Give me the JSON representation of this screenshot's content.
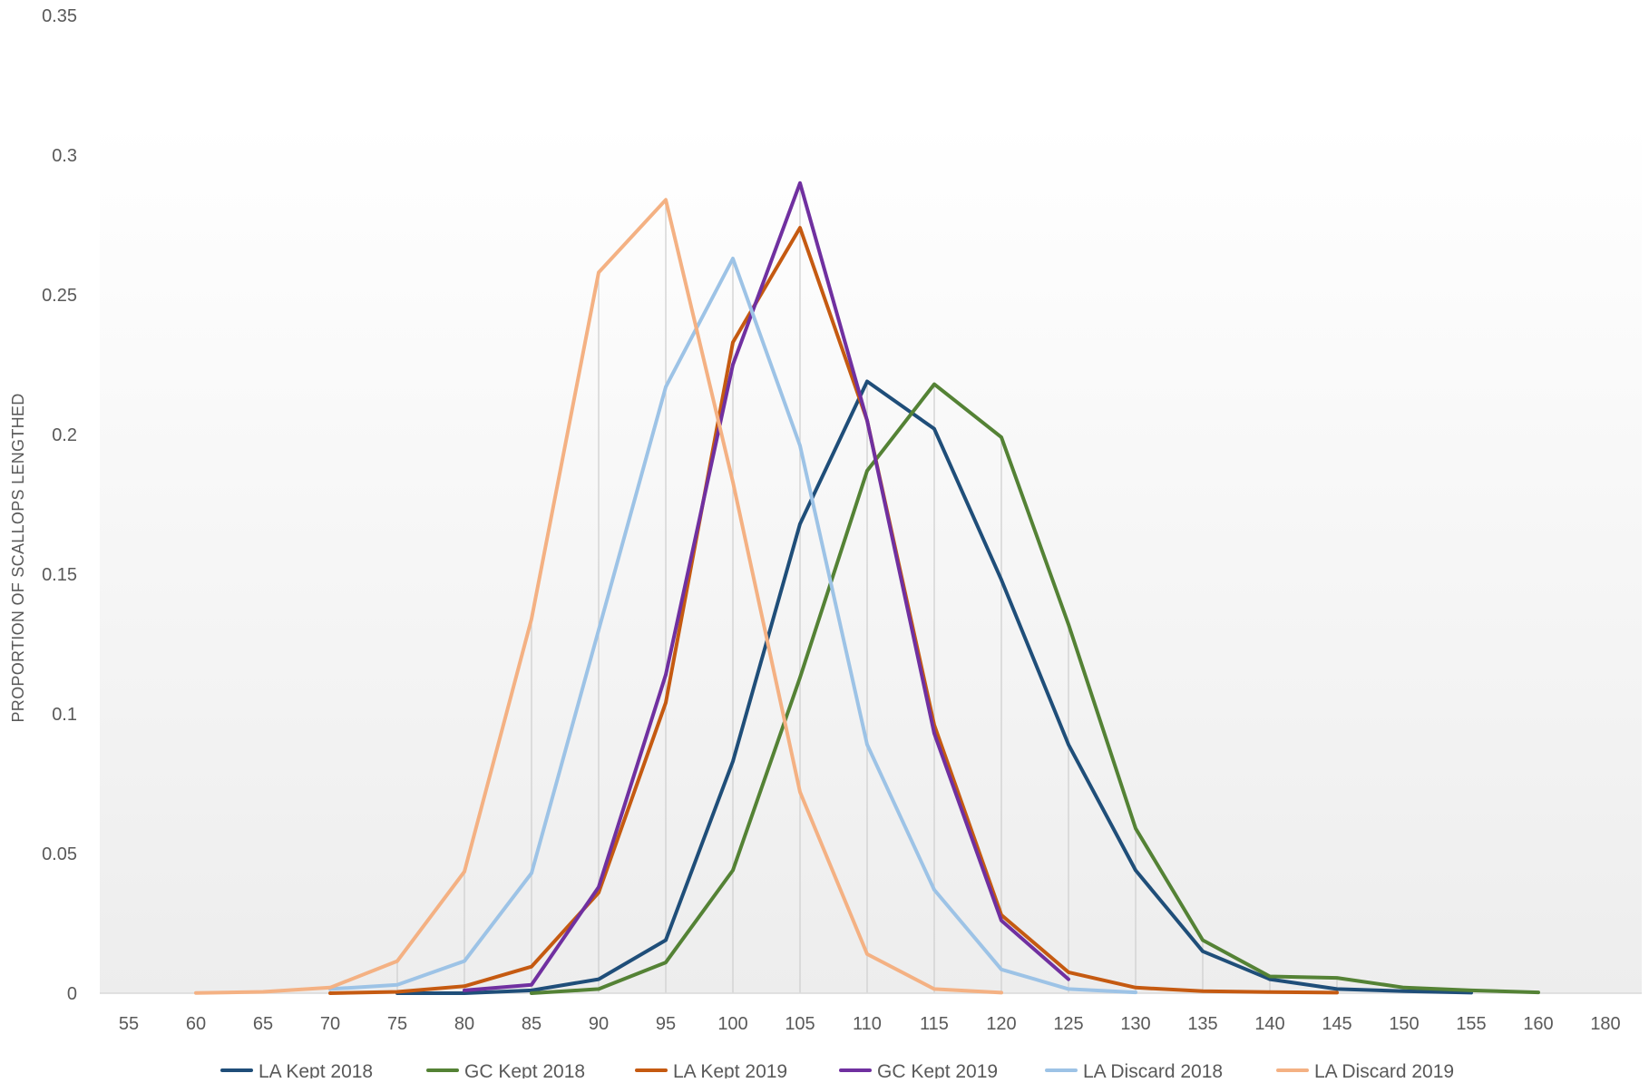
{
  "chart_data": {
    "type": "line",
    "title": "",
    "ylabel": "PROPORTION OF SCALLOPS LENGTHED",
    "xlabel": "",
    "categories": [
      "55",
      "60",
      "65",
      "70",
      "75",
      "80",
      "85",
      "90",
      "95",
      "100",
      "105",
      "110",
      "115",
      "120",
      "125",
      "130",
      "135",
      "140",
      "145",
      "150",
      "155",
      "160",
      "180"
    ],
    "yticks": [
      "0",
      "0.05",
      "0.1",
      "0.15",
      "0.2",
      "0.25",
      "0.3",
      "0.35"
    ],
    "ylim": [
      0,
      0.35
    ],
    "grid": "vertical drop lines",
    "legend_position": "bottom",
    "series": [
      {
        "name": "LA Kept 2018",
        "color": "#1F4E79",
        "points": [
          [
            75,
            0
          ],
          [
            80,
            0
          ],
          [
            85,
            0.001
          ],
          [
            90,
            0.005
          ],
          [
            95,
            0.019
          ],
          [
            100,
            0.083
          ],
          [
            105,
            0.168
          ],
          [
            110,
            0.219
          ],
          [
            115,
            0.202
          ],
          [
            120,
            0.148
          ],
          [
            125,
            0.089
          ],
          [
            130,
            0.044
          ],
          [
            135,
            0.015
          ],
          [
            140,
            0.005
          ],
          [
            145,
            0.0015
          ],
          [
            150,
            0.0007
          ],
          [
            155,
            0.0002
          ]
        ]
      },
      {
        "name": "GC Kept 2018",
        "color": "#548235",
        "points": [
          [
            85,
            0
          ],
          [
            90,
            0.0015
          ],
          [
            95,
            0.011
          ],
          [
            100,
            0.044
          ],
          [
            105,
            0.113
          ],
          [
            110,
            0.187
          ],
          [
            115,
            0.218
          ],
          [
            120,
            0.199
          ],
          [
            125,
            0.132
          ],
          [
            130,
            0.059
          ],
          [
            135,
            0.019
          ],
          [
            140,
            0.006
          ],
          [
            145,
            0.0055
          ],
          [
            150,
            0.002
          ],
          [
            155,
            0.001
          ],
          [
            160,
            0.0003
          ]
        ]
      },
      {
        "name": "LA Kept 2019",
        "color": "#C55A11",
        "points": [
          [
            70,
            0
          ],
          [
            75,
            0.0005
          ],
          [
            80,
            0.0025
          ],
          [
            85,
            0.0095
          ],
          [
            90,
            0.036
          ],
          [
            95,
            0.104
          ],
          [
            100,
            0.233
          ],
          [
            105,
            0.274
          ],
          [
            110,
            0.205
          ],
          [
            115,
            0.096
          ],
          [
            120,
            0.028
          ],
          [
            125,
            0.0075
          ],
          [
            130,
            0.002
          ],
          [
            135,
            0.0007
          ],
          [
            140,
            0.0004
          ],
          [
            145,
            0.0002
          ]
        ]
      },
      {
        "name": "GC Kept 2019",
        "color": "#7030A0",
        "points": [
          [
            80,
            0.001
          ],
          [
            85,
            0.003
          ],
          [
            90,
            0.038
          ],
          [
            95,
            0.114
          ],
          [
            100,
            0.225
          ],
          [
            105,
            0.29
          ],
          [
            110,
            0.205
          ],
          [
            115,
            0.093
          ],
          [
            120,
            0.026
          ],
          [
            125,
            0.005
          ]
        ]
      },
      {
        "name": "LA Discard 2018",
        "color": "#9DC3E6",
        "points": [
          [
            70,
            0.0015
          ],
          [
            75,
            0.003
          ],
          [
            80,
            0.0115
          ],
          [
            85,
            0.043
          ],
          [
            90,
            0.13
          ],
          [
            95,
            0.217
          ],
          [
            100,
            0.263
          ],
          [
            105,
            0.196
          ],
          [
            110,
            0.089
          ],
          [
            115,
            0.037
          ],
          [
            120,
            0.0085
          ],
          [
            125,
            0.0015
          ],
          [
            130,
            0.0003
          ]
        ]
      },
      {
        "name": "LA Discard 2019",
        "color": "#F4B183",
        "points": [
          [
            60,
            0.0001
          ],
          [
            65,
            0.0005
          ],
          [
            70,
            0.002
          ],
          [
            75,
            0.0115
          ],
          [
            80,
            0.0435
          ],
          [
            85,
            0.134
          ],
          [
            90,
            0.258
          ],
          [
            95,
            0.284
          ],
          [
            100,
            0.183
          ],
          [
            105,
            0.072
          ],
          [
            110,
            0.014
          ],
          [
            115,
            0.0015
          ],
          [
            120,
            0.0002
          ]
        ]
      }
    ]
  }
}
